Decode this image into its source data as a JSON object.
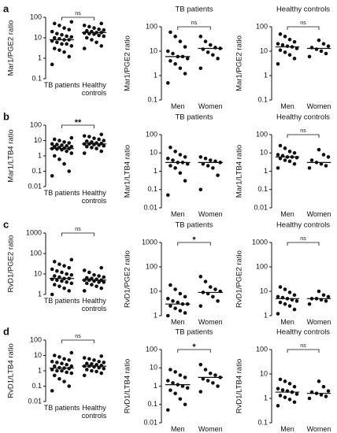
{
  "chart_data": [
    {
      "type": "dot",
      "panel": "a",
      "ylabel": "Mar1/PGE2 ratio",
      "log": true,
      "ylim": [
        0.1,
        100
      ],
      "yticks": [
        0.1,
        1,
        10,
        100
      ],
      "categories": [
        "TB patients",
        "Healthy controls"
      ],
      "significance": "ns",
      "medians": [
        8,
        18
      ],
      "values": [
        [
          0.5,
          1.2,
          2,
          2.5,
          3,
          4,
          5,
          5,
          6,
          7,
          8,
          8,
          9,
          10,
          11,
          12,
          14,
          16,
          20,
          25,
          30,
          40,
          50,
          60
        ],
        [
          3,
          4,
          6,
          8,
          10,
          12,
          13,
          15,
          16,
          17,
          18,
          18,
          20,
          22,
          24,
          26,
          30,
          35,
          40,
          50
        ]
      ]
    },
    {
      "type": "dot",
      "title": "TB patients",
      "ylabel": "Mar1/PGE2 ratio",
      "log": true,
      "ylim": [
        0.1,
        100
      ],
      "yticks": [
        0.1,
        1,
        10,
        100
      ],
      "categories": [
        "Men",
        "Women"
      ],
      "significance": "ns",
      "medians": [
        6,
        13
      ],
      "values": [
        [
          0.5,
          1.2,
          2,
          3,
          4,
          5,
          6,
          6,
          8,
          10,
          15,
          25,
          40,
          60
        ],
        [
          2,
          5,
          7,
          9,
          12,
          13,
          14,
          18,
          25,
          40
        ]
      ]
    },
    {
      "type": "dot",
      "title": "Healthy controls",
      "ylabel": "Mar1/PGE2 ratio",
      "log": true,
      "ylim": [
        0.1,
        100
      ],
      "yticks": [
        0.1,
        1,
        10,
        100
      ],
      "categories": [
        "Men",
        "Women"
      ],
      "significance": "ns",
      "medians": [
        15,
        13
      ],
      "values": [
        [
          3,
          5,
          7,
          9,
          11,
          13,
          15,
          16,
          18,
          20,
          24,
          30,
          40,
          50
        ],
        [
          6,
          8,
          10,
          12,
          14,
          16,
          20,
          28
        ]
      ]
    },
    {
      "type": "dot",
      "panel": "b",
      "ylabel": "Mar1/LTB4 ratio",
      "log": true,
      "ylim": [
        0.01,
        100
      ],
      "yticks": [
        0.01,
        0.1,
        1,
        10,
        100
      ],
      "categories": [
        "TB patients",
        "Healthy controls"
      ],
      "significance": "**",
      "medians": [
        3,
        6
      ],
      "values": [
        [
          0.05,
          0.1,
          0.3,
          0.6,
          1,
          1.5,
          2,
          2.5,
          2.8,
          3,
          3,
          3.2,
          3.5,
          4,
          4,
          4.5,
          5,
          5.5,
          6,
          7,
          8,
          10,
          12,
          15
        ],
        [
          1.5,
          2,
          3,
          3.5,
          4,
          4.5,
          5,
          5.5,
          6,
          6,
          6.5,
          7,
          8,
          9,
          10,
          12,
          14,
          18,
          20,
          25
        ]
      ]
    },
    {
      "type": "dot",
      "title": "TB patients",
      "ylabel": "Mar1/LTB4 ratio",
      "log": true,
      "ylim": [
        0.01,
        100
      ],
      "yticks": [
        0.01,
        0.1,
        1,
        10,
        100
      ],
      "categories": [
        "Men",
        "Women"
      ],
      "significance": null,
      "medians": [
        3,
        3
      ],
      "values": [
        [
          0.05,
          0.3,
          0.8,
          1.5,
          2,
          2.5,
          3,
          3,
          4,
          5,
          6,
          8,
          12,
          20
        ],
        [
          0.1,
          0.6,
          1.5,
          2,
          2.5,
          3,
          3.5,
          4,
          5,
          6
        ]
      ]
    },
    {
      "type": "dot",
      "title": "Healthy controls",
      "ylabel": "Mar1/LTB4 ratio",
      "log": true,
      "ylim": [
        0.01,
        100
      ],
      "yticks": [
        0.01,
        0.1,
        1,
        10,
        100
      ],
      "categories": [
        "Men",
        "Women"
      ],
      "significance": "ns",
      "medians": [
        6,
        3
      ],
      "values": [
        [
          1.5,
          2.5,
          3.5,
          4,
          5,
          5.5,
          6,
          6,
          7,
          8,
          10,
          12,
          18,
          25
        ],
        [
          1.5,
          2,
          2.5,
          3,
          4,
          6,
          8,
          15
        ]
      ]
    },
    {
      "type": "dot",
      "panel": "c",
      "ylabel": "RvD1/PGE2 ratio",
      "log": true,
      "ylim": [
        1,
        1000
      ],
      "yticks": [
        1,
        10,
        100,
        1000
      ],
      "categories": [
        "TB patients",
        "Healthy controls"
      ],
      "significance": "ns",
      "medians": [
        6,
        5
      ],
      "values": [
        [
          1,
          1.5,
          2,
          2.5,
          3,
          3.5,
          4,
          4.5,
          5,
          5.5,
          6,
          6,
          7,
          8,
          9,
          10,
          12,
          14,
          17,
          20,
          25,
          30,
          40,
          50
        ],
        [
          1.5,
          2,
          2.5,
          3,
          3.5,
          4,
          4,
          4.5,
          5,
          5,
          5,
          5.5,
          6,
          6.5,
          7,
          8,
          9,
          12,
          15,
          20
        ]
      ]
    },
    {
      "type": "dot",
      "title": "TB patients",
      "ylabel": "RvD1/PGE2 ratio",
      "log": true,
      "ylim": [
        1,
        1000
      ],
      "yticks": [
        1,
        10,
        100,
        1000
      ],
      "categories": [
        "Men",
        "Women"
      ],
      "significance": "*",
      "medians": [
        3,
        9
      ],
      "values": [
        [
          1,
          1.3,
          1.6,
          2,
          2.5,
          3,
          3,
          3.5,
          4,
          5,
          6,
          8,
          12,
          18
        ],
        [
          2.5,
          4,
          6,
          8,
          9,
          10,
          12,
          15,
          25,
          40
        ]
      ]
    },
    {
      "type": "dot",
      "title": "Healthy controls",
      "ylabel": "RvD1/PGE2 ratio",
      "log": true,
      "ylim": [
        1,
        1000
      ],
      "yticks": [
        1,
        10,
        100,
        1000
      ],
      "categories": [
        "Men",
        "Women"
      ],
      "significance": "ns",
      "medians": [
        5,
        5
      ],
      "values": [
        [
          1.2,
          1.8,
          2.5,
          3,
          3.5,
          4,
          4.5,
          5,
          5.5,
          6,
          7,
          9,
          12,
          15
        ],
        [
          3,
          4,
          4.5,
          5,
          5,
          6,
          7,
          10
        ]
      ]
    },
    {
      "type": "dot",
      "panel": "d",
      "ylabel": "RvD1/LTB4 ratio",
      "log": true,
      "ylim": [
        0.01,
        100
      ],
      "yticks": [
        0.01,
        0.1,
        1,
        10,
        100
      ],
      "categories": [
        "TB patients",
        "Healthy controls"
      ],
      "significance": "ns",
      "medians": [
        1.5,
        2
      ],
      "values": [
        [
          0.05,
          0.1,
          0.2,
          0.3,
          0.5,
          0.7,
          0.8,
          1,
          1,
          1.2,
          1.4,
          1.5,
          1.6,
          2,
          2,
          2.5,
          3,
          3.5,
          4,
          5,
          6,
          8,
          10,
          15
        ],
        [
          0.5,
          0.7,
          0.9,
          1,
          1.2,
          1.4,
          1.6,
          1.8,
          2,
          2,
          2.2,
          2.5,
          2.8,
          3,
          3.5,
          4,
          5,
          6,
          7,
          9
        ]
      ]
    },
    {
      "type": "dot",
      "title": "TB patients",
      "ylabel": "RvD1/LTB4 ratio",
      "log": true,
      "ylim": [
        0.01,
        100
      ],
      "yticks": [
        0.01,
        0.1,
        1,
        10,
        100
      ],
      "categories": [
        "Men",
        "Women"
      ],
      "significance": "*",
      "medians": [
        1.2,
        3
      ],
      "values": [
        [
          0.05,
          0.1,
          0.2,
          0.4,
          0.6,
          0.8,
          1,
          1.2,
          1.5,
          2,
          3,
          4,
          6,
          8
        ],
        [
          0.5,
          1,
          1.5,
          2,
          2.5,
          3,
          4,
          5,
          8,
          15
        ]
      ]
    },
    {
      "type": "dot",
      "title": "Healthy controls",
      "ylabel": "RvD1/LTB4 ratio",
      "log": true,
      "ylim": [
        0.1,
        100
      ],
      "yticks": [
        0.1,
        1,
        10,
        100
      ],
      "categories": [
        "Men",
        "Women"
      ],
      "significance": "ns",
      "medians": [
        1.8,
        1.6
      ],
      "values": [
        [
          0.5,
          0.7,
          0.9,
          1.1,
          1.3,
          1.5,
          1.8,
          2,
          2.2,
          2.5,
          3,
          4,
          5,
          6
        ],
        [
          1,
          1.2,
          1.4,
          1.6,
          1.8,
          2,
          3,
          5
        ]
      ]
    }
  ]
}
